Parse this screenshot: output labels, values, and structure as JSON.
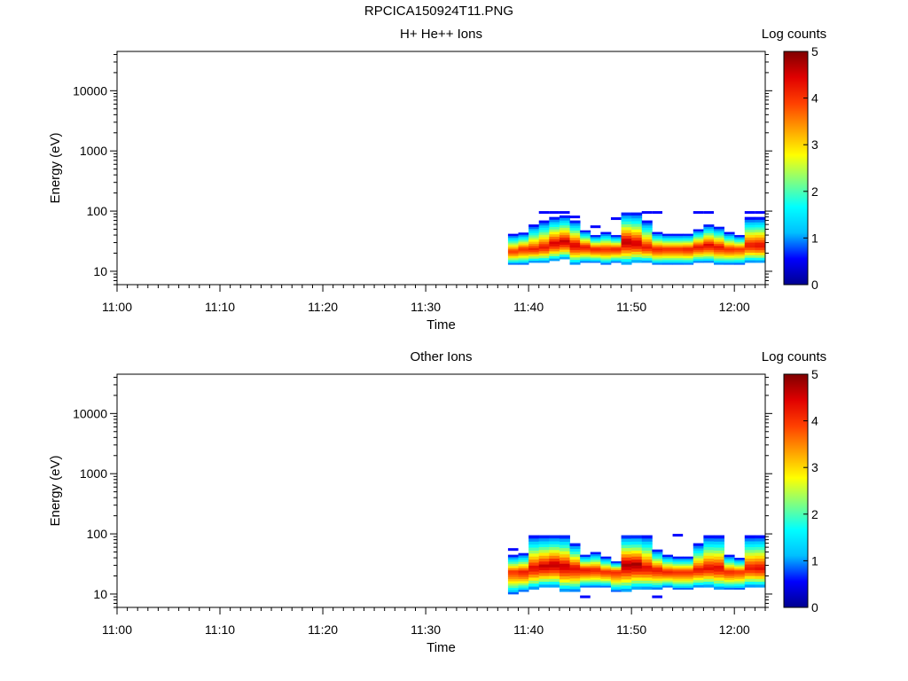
{
  "page": {
    "title": "RPCICA150924T11.PNG"
  },
  "colorscale": {
    "stops": [
      "#00008f",
      "#0000ff",
      "#00bfff",
      "#00ffff",
      "#80ff80",
      "#ffff00",
      "#ffa000",
      "#ff4000",
      "#e00000",
      "#800000"
    ]
  },
  "chart_data": [
    {
      "type": "heatmap",
      "title": "H+ He++ Ions",
      "xlabel": "Time",
      "ylabel": "Energy (eV)",
      "x_ticks": [
        "11:00",
        "11:10",
        "11:20",
        "11:30",
        "11:40",
        "11:50",
        "12:00"
      ],
      "xlim": [
        "11:00",
        "12:03"
      ],
      "y_scale": "log",
      "y_ticks": [
        "10",
        "100",
        "1000",
        "10000"
      ],
      "ylim": [
        6,
        45000
      ],
      "colorbar": {
        "label": "Log counts",
        "ticks": [
          "0",
          "1",
          "2",
          "3",
          "4",
          "5"
        ],
        "range": [
          0,
          5
        ]
      },
      "columns": [
        {
          "time": "11:38.5",
          "low": 13,
          "high": 42,
          "peak": 22,
          "max": 4.0,
          "sparse": []
        },
        {
          "time": "11:39.5",
          "low": 13,
          "high": 44,
          "peak": 24,
          "max": 4.1,
          "sparse": []
        },
        {
          "time": "11:40.5",
          "low": 14,
          "high": 60,
          "peak": 24,
          "max": 4.2,
          "sparse": []
        },
        {
          "time": "11:41.5",
          "low": 14,
          "high": 70,
          "peak": 26,
          "max": 4.3,
          "sparse": [
            95
          ]
        },
        {
          "time": "11:42.5",
          "low": 15,
          "high": 80,
          "peak": 30,
          "max": 4.5,
          "sparse": [
            95
          ]
        },
        {
          "time": "11:43.5",
          "low": 16,
          "high": 85,
          "peak": 32,
          "max": 4.6,
          "sparse": [
            95
          ]
        },
        {
          "time": "11:44.5",
          "low": 13,
          "high": 70,
          "peak": 28,
          "max": 4.5,
          "sparse": [
            80
          ]
        },
        {
          "time": "11:45.5",
          "low": 14,
          "high": 48,
          "peak": 26,
          "max": 4.3,
          "sparse": []
        },
        {
          "time": "11:46.5",
          "low": 14,
          "high": 40,
          "peak": 24,
          "max": 4.2,
          "sparse": [
            55
          ]
        },
        {
          "time": "11:47.5",
          "low": 13,
          "high": 45,
          "peak": 24,
          "max": 4.1,
          "sparse": []
        },
        {
          "time": "11:48.5",
          "low": 14,
          "high": 40,
          "peak": 24,
          "max": 4.2,
          "sparse": [
            75
          ]
        },
        {
          "time": "11:49.5",
          "low": 13,
          "high": 95,
          "peak": 32,
          "max": 4.7,
          "sparse": []
        },
        {
          "time": "11:50.5",
          "low": 14,
          "high": 95,
          "peak": 30,
          "max": 4.6,
          "sparse": []
        },
        {
          "time": "11:51.5",
          "low": 14,
          "high": 70,
          "peak": 26,
          "max": 4.3,
          "sparse": [
            95
          ]
        },
        {
          "time": "11:52.5",
          "low": 13,
          "high": 45,
          "peak": 24,
          "max": 4.2,
          "sparse": [
            95
          ]
        },
        {
          "time": "11:53.5",
          "low": 13,
          "high": 42,
          "peak": 24,
          "max": 4.1,
          "sparse": []
        },
        {
          "time": "11:54.5",
          "low": 13,
          "high": 42,
          "peak": 24,
          "max": 4.1,
          "sparse": []
        },
        {
          "time": "11:55.5",
          "low": 13,
          "high": 42,
          "peak": 24,
          "max": 4.2,
          "sparse": []
        },
        {
          "time": "11:56.5",
          "low": 14,
          "high": 50,
          "peak": 26,
          "max": 4.3,
          "sparse": [
            95
          ]
        },
        {
          "time": "11:57.5",
          "low": 14,
          "high": 60,
          "peak": 28,
          "max": 4.4,
          "sparse": [
            95
          ]
        },
        {
          "time": "11:58.5",
          "low": 13,
          "high": 55,
          "peak": 26,
          "max": 4.3,
          "sparse": []
        },
        {
          "time": "11:59.5",
          "low": 13,
          "high": 45,
          "peak": 24,
          "max": 4.1,
          "sparse": []
        },
        {
          "time": "12:00.5",
          "low": 13,
          "high": 40,
          "peak": 24,
          "max": 4.0,
          "sparse": []
        },
        {
          "time": "12:01.5",
          "low": 14,
          "high": 80,
          "peak": 28,
          "max": 4.3,
          "sparse": [
            95
          ]
        },
        {
          "time": "12:02.5",
          "low": 14,
          "high": 80,
          "peak": 28,
          "max": 4.4,
          "sparse": [
            95
          ]
        }
      ]
    },
    {
      "type": "heatmap",
      "title": "Other Ions",
      "xlabel": "Time",
      "ylabel": "Energy (eV)",
      "x_ticks": [
        "11:00",
        "11:10",
        "11:20",
        "11:30",
        "11:40",
        "11:50",
        "12:00"
      ],
      "xlim": [
        "11:00",
        "12:03"
      ],
      "y_scale": "log",
      "y_ticks": [
        "10",
        "100",
        "1000",
        "10000"
      ],
      "ylim": [
        6,
        45000
      ],
      "colorbar": {
        "label": "Log counts",
        "ticks": [
          "0",
          "1",
          "2",
          "3",
          "4",
          "5"
        ],
        "range": [
          0,
          5
        ]
      },
      "columns": [
        {
          "time": "11:38.5",
          "low": 10,
          "high": 45,
          "peak": 24,
          "max": 4.0,
          "sparse": [
            55
          ]
        },
        {
          "time": "11:39.5",
          "low": 11,
          "high": 48,
          "peak": 24,
          "max": 4.2,
          "sparse": []
        },
        {
          "time": "11:40.5",
          "low": 12,
          "high": 95,
          "peak": 28,
          "max": 4.4,
          "sparse": []
        },
        {
          "time": "11:41.5",
          "low": 13,
          "high": 95,
          "peak": 30,
          "max": 4.6,
          "sparse": []
        },
        {
          "time": "11:42.5",
          "low": 13,
          "high": 95,
          "peak": 32,
          "max": 4.7,
          "sparse": []
        },
        {
          "time": "11:43.5",
          "low": 11,
          "high": 95,
          "peak": 30,
          "max": 4.6,
          "sparse": []
        },
        {
          "time": "11:44.5",
          "low": 11,
          "high": 70,
          "peak": 28,
          "max": 4.4,
          "sparse": []
        },
        {
          "time": "11:45.5",
          "low": 13,
          "high": 45,
          "peak": 26,
          "max": 4.3,
          "sparse": [
            9
          ]
        },
        {
          "time": "11:46.5",
          "low": 13,
          "high": 50,
          "peak": 26,
          "max": 4.2,
          "sparse": []
        },
        {
          "time": "11:47.5",
          "low": 13,
          "high": 42,
          "peak": 24,
          "max": 4.1,
          "sparse": []
        },
        {
          "time": "11:48.5",
          "low": 11,
          "high": 35,
          "peak": 24,
          "max": 4.1,
          "sparse": []
        },
        {
          "time": "11:49.5",
          "low": 11,
          "high": 95,
          "peak": 32,
          "max": 4.8,
          "sparse": []
        },
        {
          "time": "11:50.5",
          "low": 12,
          "high": 95,
          "peak": 32,
          "max": 4.8,
          "sparse": []
        },
        {
          "time": "11:51.5",
          "low": 12,
          "high": 95,
          "peak": 28,
          "max": 4.4,
          "sparse": []
        },
        {
          "time": "11:52.5",
          "low": 12,
          "high": 55,
          "peak": 26,
          "max": 4.3,
          "sparse": [
            9
          ]
        },
        {
          "time": "11:53.5",
          "low": 13,
          "high": 45,
          "peak": 24,
          "max": 4.2,
          "sparse": []
        },
        {
          "time": "11:54.5",
          "low": 12,
          "high": 42,
          "peak": 24,
          "max": 4.1,
          "sparse": [
            95
          ]
        },
        {
          "time": "11:55.5",
          "low": 12,
          "high": 42,
          "peak": 24,
          "max": 4.1,
          "sparse": []
        },
        {
          "time": "11:56.5",
          "low": 13,
          "high": 70,
          "peak": 26,
          "max": 4.3,
          "sparse": []
        },
        {
          "time": "11:57.5",
          "low": 13,
          "high": 95,
          "peak": 28,
          "max": 4.4,
          "sparse": []
        },
        {
          "time": "11:58.5",
          "low": 12,
          "high": 95,
          "peak": 28,
          "max": 4.4,
          "sparse": []
        },
        {
          "time": "11:59.5",
          "low": 12,
          "high": 45,
          "peak": 24,
          "max": 4.1,
          "sparse": []
        },
        {
          "time": "12:00.5",
          "low": 12,
          "high": 40,
          "peak": 24,
          "max": 4.0,
          "sparse": []
        },
        {
          "time": "12:01.5",
          "low": 13,
          "high": 95,
          "peak": 28,
          "max": 4.3,
          "sparse": []
        },
        {
          "time": "12:02.5",
          "low": 13,
          "high": 95,
          "peak": 28,
          "max": 4.4,
          "sparse": []
        }
      ]
    }
  ]
}
